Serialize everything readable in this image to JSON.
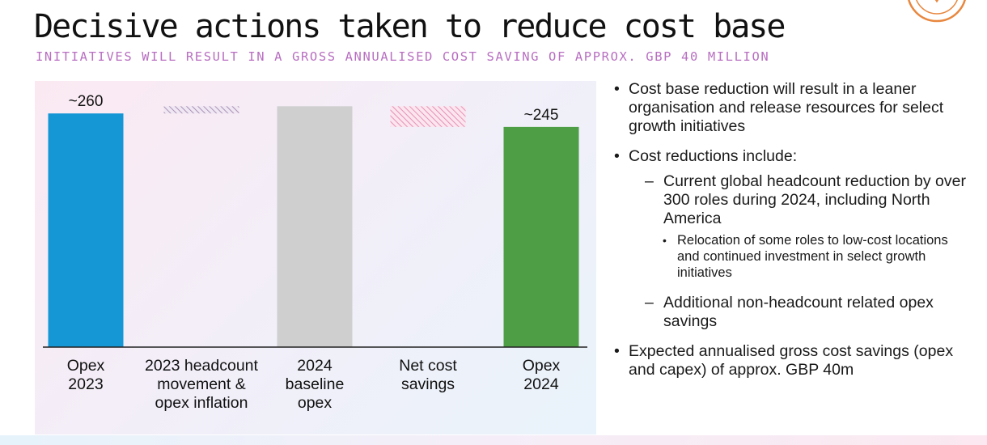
{
  "title": "Decisive actions taken to reduce cost base",
  "subtitle": "INITIATIVES WILL RESULT IN A GROSS ANNUALISED COST SAVING OF APPROX. GBP 40 MILLION",
  "colors": {
    "opex_2023": "#1597d6",
    "baseline": "#cfcfcf",
    "opex_2024": "#4e9e46",
    "headcount_hatch": "#9b7aa8",
    "savings_hatch": "#e27ba6",
    "subtitle": "#b86fc1",
    "logo": "#e8873f"
  },
  "icons": {
    "logo": "circle-logo-icon"
  },
  "chart_data": {
    "type": "bar",
    "subtype": "waterfall",
    "categories": [
      "Opex 2023",
      "2023 headcount movement & opex inflation",
      "2024 baseline opex",
      "Net cost savings",
      "Opex 2024"
    ],
    "category_lines": [
      [
        "Opex",
        "2023"
      ],
      [
        "2023 headcount",
        "movement &",
        "opex inflation"
      ],
      [
        "2024",
        "baseline",
        "opex"
      ],
      [
        "Net cost",
        "savings"
      ],
      [
        "Opex",
        "2024"
      ]
    ],
    "bars": [
      {
        "kind": "total",
        "start": 0,
        "end": 260,
        "label": "~260"
      },
      {
        "kind": "increase",
        "start": 260,
        "end": 268,
        "label": ""
      },
      {
        "kind": "total",
        "start": 0,
        "end": 268,
        "label": ""
      },
      {
        "kind": "decrease",
        "start": 268,
        "end": 245,
        "label": ""
      },
      {
        "kind": "total",
        "start": 0,
        "end": 245,
        "label": "~245"
      }
    ],
    "xlabel": "",
    "ylabel": "",
    "ylim": [
      0,
      280
    ],
    "grid": false,
    "legend": "none"
  },
  "bullets": [
    {
      "text": "Cost base reduction will result in a leaner organisation and release resources for select growth initiatives"
    },
    {
      "text": "Cost reductions include:",
      "children": [
        {
          "text": "Current global headcount reduction by over 300 roles during 2024, including North America",
          "children": [
            {
              "text": "Relocation of some roles to low-cost locations and continued investment in select growth initiatives"
            }
          ]
        },
        {
          "text": "Additional non-headcount related opex savings"
        }
      ]
    },
    {
      "text": "Expected annualised gross cost savings (opex and capex) of approx. GBP 40m"
    }
  ]
}
